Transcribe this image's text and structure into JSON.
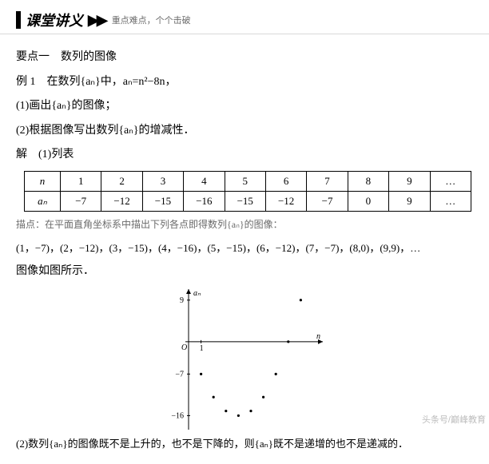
{
  "header": {
    "title": "课堂讲义",
    "subtitle": "重点难点，个个击破"
  },
  "section": {
    "keypoint": "要点一　数列的图像",
    "example": "例 1　在数列{aₙ}中，aₙ=n²−8n，",
    "q1": "(1)画出{aₙ}的图像；",
    "q2": "(2)根据图像写出数列{aₙ}的增减性．",
    "solve_label": "解　(1)列表"
  },
  "table": {
    "row_labels": [
      "n",
      "aₙ"
    ],
    "n": [
      "1",
      "2",
      "3",
      "4",
      "5",
      "6",
      "7",
      "8",
      "9",
      "…"
    ],
    "an": [
      "−7",
      "−12",
      "−15",
      "−16",
      "−15",
      "−12",
      "−7",
      "0",
      "9",
      "…"
    ]
  },
  "hint": "描点：在平面直角坐标系中描出下列各点即得数列{aₙ}的图像：",
  "points_line": "(1，−7)，(2，−12)，(3，−15)，(4，−16)，(5，−15)，(6，−12)，(7，−7)，(8,0)，(9,9)，…",
  "fig_note": "图像如图所示．",
  "chart": {
    "type": "scatter",
    "x_values": [
      1,
      2,
      3,
      4,
      5,
      6,
      7,
      8,
      9
    ],
    "y_values": [
      -7,
      -12,
      -15,
      -16,
      -15,
      -12,
      -7,
      0,
      9
    ],
    "xlim": [
      0,
      10
    ],
    "ylim": [
      -18,
      10
    ],
    "y_ticks": [
      -16,
      -7,
      9
    ],
    "x_ticks": [
      1
    ],
    "x_label": "n",
    "y_label": "aₙ",
    "origin_label": "O",
    "axis_color": "#000000",
    "point_color": "#000000",
    "point_radius": 1.6,
    "background": "#ffffff",
    "font_size": 10
  },
  "conclusion": "(2)数列{aₙ}的图像既不是上升的，也不是下降的，则{aₙ}既不是递增的也不是递减的．",
  "watermark": "头条号/巅峰教育"
}
